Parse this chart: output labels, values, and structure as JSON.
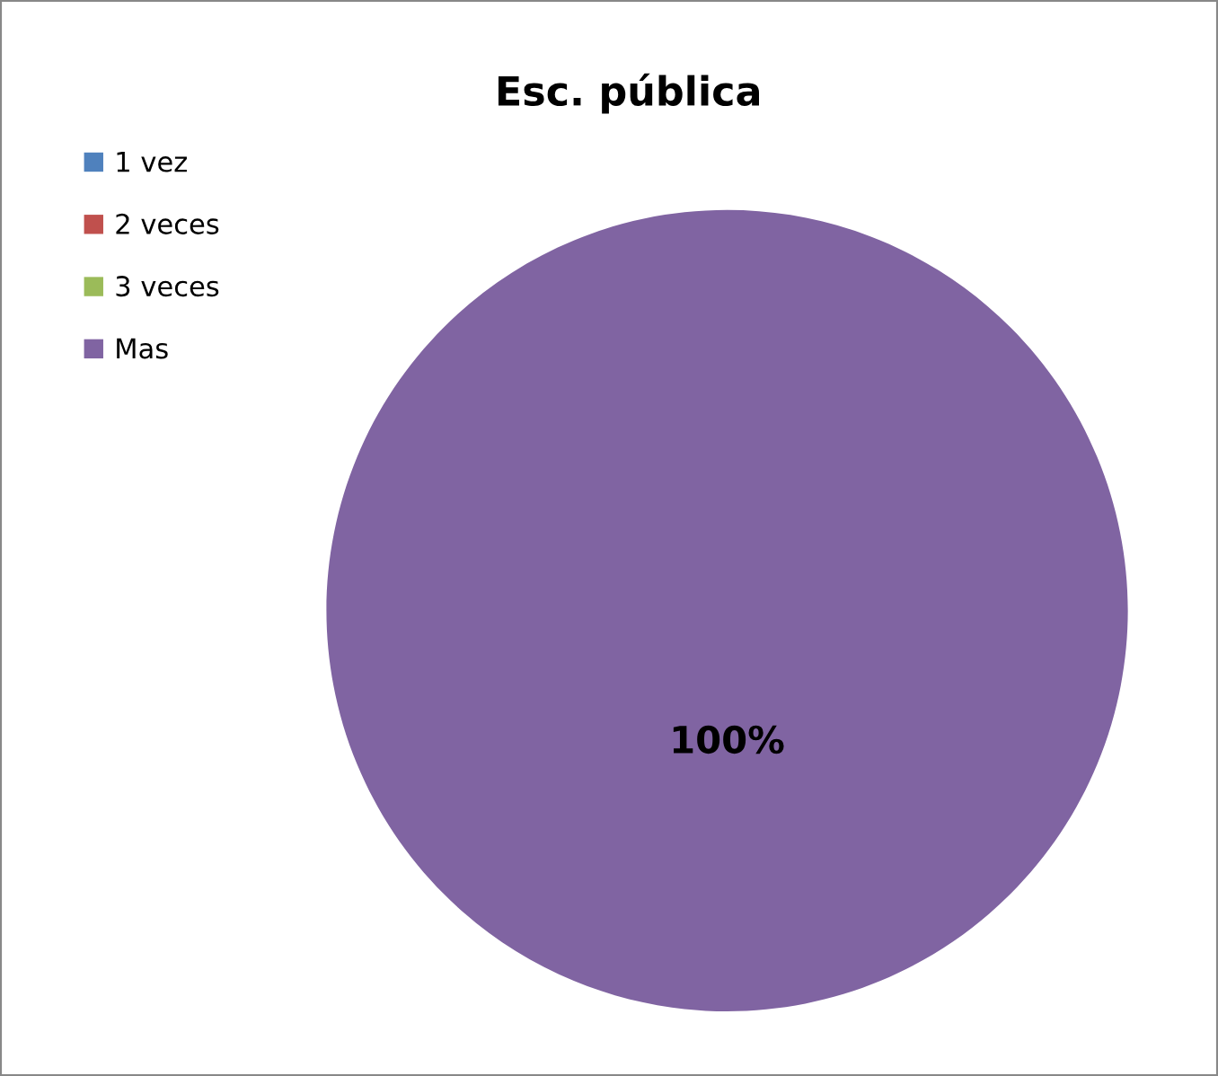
{
  "chart_data": {
    "type": "pie",
    "title": "Esc. pública",
    "categories": [
      "1 vez",
      "2 veces",
      "3 veces",
      "Mas"
    ],
    "values": [
      0,
      0,
      0,
      100
    ],
    "colors": [
      "#4f81bd",
      "#c0504d",
      "#9bbb59",
      "#8064a2"
    ],
    "value_labels": [
      null,
      null,
      null,
      "100%"
    ],
    "legend": "top left"
  }
}
